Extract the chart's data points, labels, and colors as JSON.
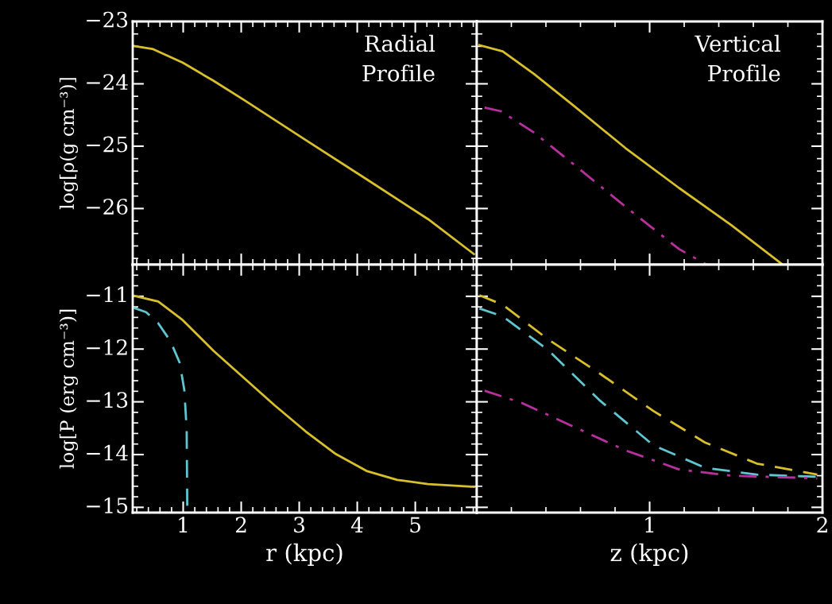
{
  "chart_data": [
    {
      "type": "line",
      "ylabel": "log[ρ(g cm⁻³)]",
      "annotations": [
        "Radial\nProfile"
      ],
      "xlim": [
        0.13,
        6.06
      ],
      "ylim": [
        -26.9,
        -23
      ],
      "xticks": [
        1,
        2,
        3,
        4,
        5
      ],
      "yticks": [
        -23,
        -24,
        -25,
        -26
      ],
      "tick_labels": "y",
      "grid": false,
      "legend": false,
      "series": [
        {
          "color": "#d8bf2c",
          "line_style": "solid",
          "x": [
            0.13,
            0.47,
            0.99,
            1.52,
            2.05,
            3.11,
            4.16,
            5.22,
            6.01
          ],
          "values": [
            -23.39,
            -23.44,
            -23.66,
            -23.95,
            -24.26,
            -24.9,
            -25.53,
            -26.17,
            -26.73
          ]
        }
      ]
    },
    {
      "type": "line",
      "annotations": [
        "Vertical\nProfile"
      ],
      "xlim": [
        0,
        2
      ],
      "ylim": [
        -26.9,
        -23
      ],
      "xticks": [
        1,
        2
      ],
      "yticks": [
        -23,
        -24,
        -25,
        -26
      ],
      "tick_labels": false,
      "grid": false,
      "legend": false,
      "series": [
        {
          "color": "#d8bf2c",
          "line_style": "solid",
          "x": [
            0.015,
            0.15,
            0.33,
            0.56,
            0.86,
            1.17,
            1.47,
            1.77
          ],
          "values": [
            -23.38,
            -23.48,
            -23.84,
            -24.35,
            -25.03,
            -25.67,
            -26.26,
            -26.9
          ]
        },
        {
          "color": "#b8309e",
          "line_style": "dashdot",
          "x": [
            0.045,
            0.14,
            0.33,
            0.56,
            0.86,
            1.17,
            1.33
          ],
          "values": [
            -24.38,
            -24.44,
            -24.78,
            -25.29,
            -25.97,
            -26.65,
            -26.9
          ]
        }
      ]
    },
    {
      "type": "line",
      "xlabel": "r (kpc)",
      "ylabel": "log[P (erg cm⁻³)]",
      "xlim": [
        0.13,
        6.06
      ],
      "ylim": [
        -15.1,
        -10.4
      ],
      "xticks": [
        1,
        2,
        3,
        4,
        5
      ],
      "yticks": [
        -11,
        -12,
        -13,
        -14,
        -15
      ],
      "grid": false,
      "legend": false,
      "series": [
        {
          "color": "#d8bf2c",
          "line_style": "solid",
          "x": [
            0.15,
            0.57,
            0.99,
            1.52,
            2.05,
            2.58,
            3.11,
            3.63,
            4.16,
            4.69,
            5.22,
            6.01
          ],
          "values": [
            -10.99,
            -11.1,
            -11.45,
            -12.03,
            -12.55,
            -13.07,
            -13.56,
            -13.99,
            -14.31,
            -14.48,
            -14.56,
            -14.61
          ]
        },
        {
          "color": "#5fc6cf",
          "line_style": "dashed",
          "x": [
            0.15,
            0.36,
            0.57,
            0.78,
            0.94,
            1.02,
            1.06,
            1.07
          ],
          "values": [
            -11.22,
            -11.3,
            -11.51,
            -11.85,
            -12.26,
            -12.78,
            -13.53,
            -14.97
          ]
        }
      ]
    },
    {
      "type": "line",
      "xlabel": "z (kpc)",
      "xlim": [
        0,
        2
      ],
      "ylim": [
        -15.1,
        -10.4
      ],
      "xticks": [
        1,
        2
      ],
      "yticks": [
        -11,
        -12,
        -13,
        -14,
        -15
      ],
      "tick_labels": "x",
      "grid": false,
      "legend": false,
      "series": [
        {
          "color": "#d8bf2c",
          "line_style": "dashed",
          "x": [
            0.015,
            0.15,
            0.41,
            0.71,
            1.02,
            1.32,
            1.62,
            1.97
          ],
          "values": [
            -10.98,
            -11.16,
            -11.81,
            -12.46,
            -13.17,
            -13.77,
            -14.17,
            -14.38
          ]
        },
        {
          "color": "#5fc6cf",
          "line_style": "dashed",
          "x": [
            0.015,
            0.15,
            0.41,
            0.71,
            1.02,
            1.32,
            1.62,
            1.97
          ],
          "values": [
            -11.23,
            -11.38,
            -12.01,
            -12.97,
            -13.82,
            -14.25,
            -14.38,
            -14.42
          ]
        },
        {
          "color": "#b8309e",
          "line_style": "dashdot",
          "x": [
            0.045,
            0.26,
            0.56,
            0.86,
            1.17,
            1.47,
            1.97
          ],
          "values": [
            -12.79,
            -13.02,
            -13.47,
            -13.92,
            -14.28,
            -14.4,
            -14.45
          ]
        }
      ]
    }
  ]
}
